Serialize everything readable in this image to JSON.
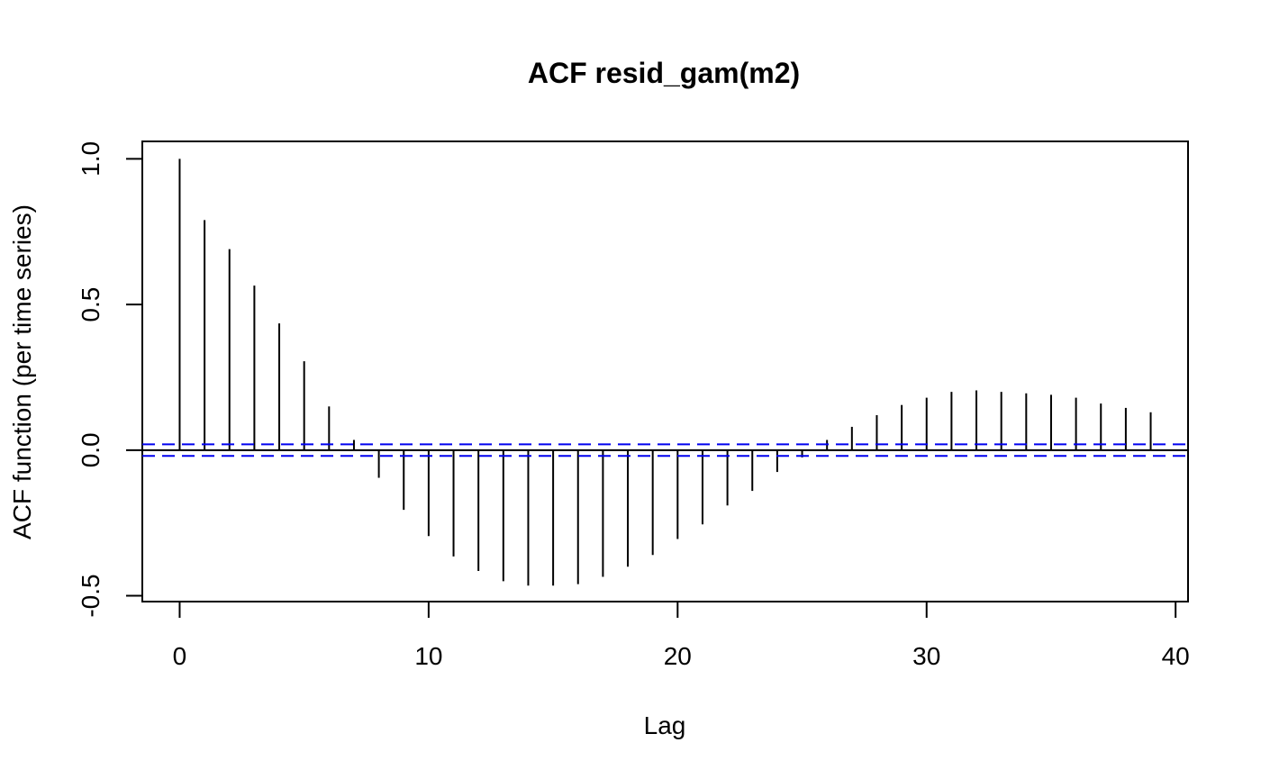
{
  "chart_data": {
    "type": "bar",
    "title": "ACF resid_gam(m2)",
    "xlabel": "Lag",
    "ylabel": "ACF function (per time series)",
    "xlim": [
      -1.5,
      40.5
    ],
    "ylim": [
      -0.52,
      1.06
    ],
    "x_ticks": [
      "0",
      "10",
      "20",
      "30",
      "40"
    ],
    "y_ticks": [
      "-0.5",
      "0.0",
      "0.5",
      "1.0"
    ],
    "x_tick_values": [
      0,
      10,
      20,
      30,
      40
    ],
    "y_tick_values": [
      -0.5,
      0.0,
      0.5,
      1.0
    ],
    "confidence_bounds": [
      0.02,
      -0.02
    ],
    "series": [
      {
        "lags": [
          0,
          1,
          2,
          3,
          4,
          5,
          6,
          7,
          8,
          9,
          10,
          11,
          12,
          13,
          14,
          15,
          16,
          17,
          18,
          19,
          20,
          21,
          22,
          23,
          24,
          25,
          26,
          27,
          28,
          29,
          30,
          31,
          32,
          33,
          34,
          35,
          36,
          37,
          38,
          39
        ],
        "values": [
          1.0,
          0.79,
          0.69,
          0.565,
          0.435,
          0.305,
          0.15,
          0.035,
          -0.095,
          -0.205,
          -0.295,
          -0.365,
          -0.415,
          -0.45,
          -0.465,
          -0.465,
          -0.46,
          -0.435,
          -0.4,
          -0.36,
          -0.305,
          -0.255,
          -0.19,
          -0.14,
          -0.075,
          -0.025,
          0.035,
          0.08,
          0.12,
          0.155,
          0.18,
          0.2,
          0.205,
          0.2,
          0.195,
          0.19,
          0.18,
          0.16,
          0.145,
          0.13
        ]
      }
    ],
    "colors": {
      "spikes": "#000000",
      "bounds": "#0000ee",
      "axes": "#000000"
    },
    "grid": false
  }
}
